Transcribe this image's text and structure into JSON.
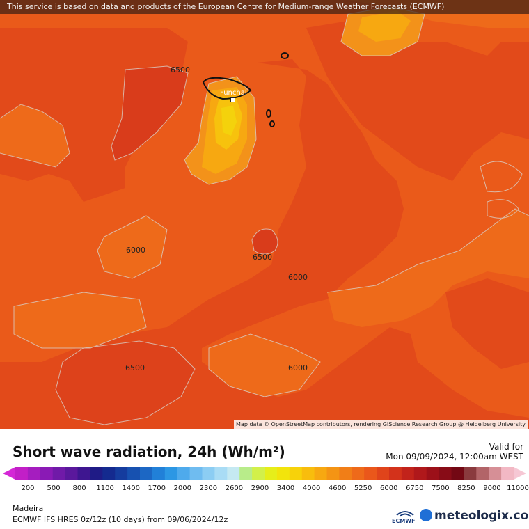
{
  "header": {
    "notice": "This service is based on data and products of the European Centre for Medium-range Weather Forecasts (ECMWF)"
  },
  "map": {
    "attribution": "Map data © OpenStreetMap contributors, rendering GIScience Research Group @ Heidelberg University",
    "city": "Funchal",
    "contour_labels": [
      "6500",
      "6000",
      "6500",
      "6000",
      "6500",
      "6000"
    ]
  },
  "legend": {
    "title": "Short wave radiation, 24h (Wh/m²)",
    "valid_label": "Valid for",
    "valid_time": "Mon 09/09/2024, 12:00am WEST",
    "ticks": [
      "200",
      "500",
      "800",
      "1100",
      "1400",
      "1700",
      "2000",
      "2300",
      "2600",
      "2900",
      "3400",
      "4000",
      "4600",
      "5250",
      "6000",
      "6750",
      "7500",
      "8250",
      "9000",
      "11000"
    ],
    "colors": [
      "#c21fc7",
      "#a51dbf",
      "#8a1ab5",
      "#701aa8",
      "#5a189c",
      "#3e1690",
      "#1f1b86",
      "#142a8f",
      "#153c9e",
      "#1751b0",
      "#1c67c4",
      "#2180d8",
      "#2c97e4",
      "#4eaaec",
      "#6fbcf0",
      "#8ccdf3",
      "#a9dcf5",
      "#c5e9f2",
      "#b8ec8a",
      "#d2f04a",
      "#e6ee1a",
      "#f2e40c",
      "#f7d20a",
      "#f8bd0d",
      "#f7a811",
      "#f49414",
      "#f17e17",
      "#ee6a1a",
      "#ea571b",
      "#e0441b",
      "#d3321b",
      "#c2231b",
      "#b0181b",
      "#9c1019",
      "#880c17",
      "#730814",
      "#8a3a3e",
      "#b26468",
      "#d68f96",
      "#f2b8c4"
    ],
    "start_color": "#d427d6",
    "end_color": "#f6c7d4"
  },
  "footer": {
    "region": "Madeira",
    "model": "ECMWF IFS HRES 0z/12z (10 days) from 09/06/2024/12z",
    "ecmwf_logo": "ECMWF",
    "brand": "meteologix.com"
  }
}
